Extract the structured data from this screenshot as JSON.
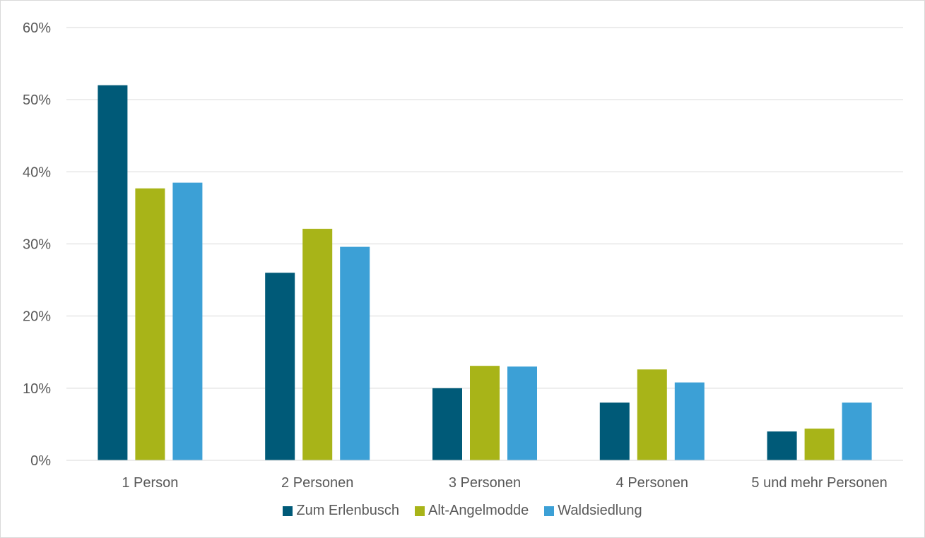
{
  "chart_data": {
    "type": "bar",
    "categories": [
      "1 Person",
      "2 Personen",
      "3 Personen",
      "4 Personen",
      "5 und mehr Personen"
    ],
    "series": [
      {
        "name": "Zum Erlenbusch",
        "color": "#005a78",
        "values": [
          52,
          26,
          10,
          8,
          4
        ]
      },
      {
        "name": "Alt-Angelmodde",
        "color": "#a8b418",
        "values": [
          37.7,
          32.1,
          13.1,
          12.6,
          4.4
        ]
      },
      {
        "name": "Waldsiedlung",
        "color": "#3ca0d6",
        "values": [
          38.5,
          29.6,
          13.0,
          10.8,
          8.0
        ]
      }
    ],
    "ylim": [
      0,
      60
    ],
    "yticks": [
      0,
      10,
      20,
      30,
      40,
      50,
      60
    ],
    "ytick_labels": [
      "0%",
      "10%",
      "20%",
      "30%",
      "40%",
      "50%",
      "60%"
    ],
    "title": "",
    "xlabel": "",
    "ylabel": "",
    "grid": true,
    "legend_position": "bottom"
  }
}
